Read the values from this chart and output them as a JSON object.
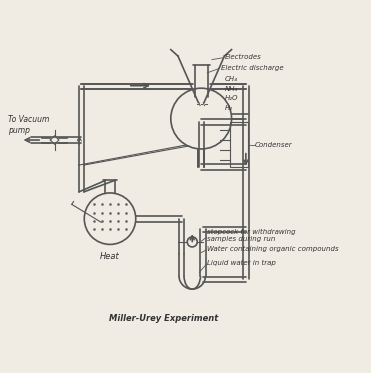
{
  "title": "Miller-Urey Experiment",
  "bg_color": "#f0ece4",
  "line_color": "#555555",
  "text_color": "#333333",
  "labels": {
    "electrodes": "Electrodes",
    "electric_discharge": "Electric discharge",
    "gases": "CH₄\nNH₃\nH₂O\nH₂",
    "condenser": "Condenser",
    "stopcock": "stopcock for withdrawing\nsamples during run",
    "water_organic": "Water containing organic compounds",
    "liquid_water": "Liquid water in trap",
    "heat": "Heat",
    "vacuum": "To Vacuum\npump"
  },
  "xlim": [
    0,
    10
  ],
  "ylim": [
    0,
    10
  ],
  "figsize": [
    3.71,
    3.73
  ],
  "dpi": 100
}
